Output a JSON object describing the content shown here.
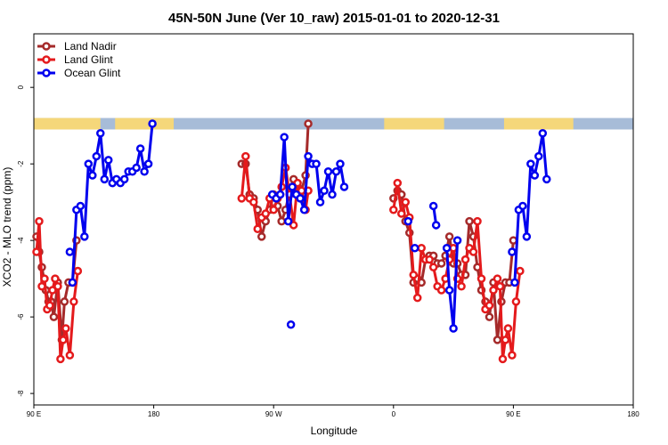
{
  "chart_data": {
    "type": "line",
    "title": "45N-50N June (Ver 10_raw)   2015-01-01 to 2020-12-31",
    "xlabel": "Longitude",
    "ylabel": "XCO2 - MLO trend (ppm)",
    "xlim": [
      90,
      540
    ],
    "ylim": [
      -8.3,
      1.4
    ],
    "x_ticks": [
      {
        "value": 90,
        "label": "90 E"
      },
      {
        "value": 180,
        "label": "180"
      },
      {
        "value": 270,
        "label": "90 W"
      },
      {
        "value": 360,
        "label": "0"
      },
      {
        "value": 450,
        "label": "90 E"
      },
      {
        "value": 540,
        "label": "180"
      }
    ],
    "y_ticks": [
      0,
      -2,
      -4,
      -6,
      -8
    ],
    "grid": false,
    "legend_position": "top-left",
    "land_ocean_strip": {
      "y_range": [
        -1.1,
        -0.8
      ],
      "land_color": "#f5d77a",
      "ocean_color": "#a7bcd8",
      "land_segments": [
        [
          90,
          140
        ],
        [
          151,
          195
        ],
        [
          353,
          398
        ],
        [
          443,
          495
        ]
      ]
    },
    "series": [
      {
        "name": "Land Nadir",
        "color": "#a52a2a",
        "points": [
          [
            92,
            -3.9
          ],
          [
            94,
            -4.3
          ],
          [
            96,
            -4.7
          ],
          [
            99,
            -5.3
          ],
          [
            101,
            -5.6
          ],
          [
            103,
            -5.6
          ],
          [
            105,
            -6.0
          ],
          [
            108,
            -5.1
          ],
          [
            111,
            -6.6
          ],
          [
            113,
            -5.6
          ],
          [
            116,
            -5.1
          ],
          [
            119,
            -5.1
          ],
          [
            122,
            -4.0
          ],
          null,
          [
            246,
            -2.0
          ],
          [
            249,
            -2.0
          ],
          [
            252,
            -2.8
          ],
          [
            255,
            -2.9
          ],
          [
            258,
            -3.2
          ],
          [
            261,
            -3.9
          ],
          [
            264,
            -3.5
          ],
          [
            267,
            -3.2
          ],
          [
            270,
            -2.8
          ],
          [
            273,
            -3.1
          ],
          [
            276,
            -3.5
          ],
          [
            279,
            -3.2
          ],
          [
            282,
            -2.7
          ],
          [
            285,
            -2.4
          ],
          [
            288,
            -2.6
          ],
          [
            291,
            -2.7
          ],
          [
            294,
            -2.3
          ],
          [
            296,
            -0.95
          ],
          null,
          [
            360,
            -2.9
          ],
          [
            363,
            -2.7
          ],
          [
            366,
            -2.8
          ],
          [
            369,
            -3.5
          ],
          [
            372,
            -3.8
          ],
          [
            375,
            -5.1
          ],
          [
            378,
            -5.0
          ],
          [
            381,
            -5.1
          ],
          [
            384,
            -4.5
          ],
          [
            387,
            -4.4
          ],
          [
            390,
            -4.4
          ],
          [
            393,
            -4.6
          ],
          [
            396,
            -4.6
          ],
          [
            399,
            -4.4
          ],
          [
            402,
            -3.9
          ],
          [
            405,
            -4.6
          ],
          [
            408,
            -4.6
          ],
          [
            411,
            -4.9
          ],
          [
            414,
            -4.9
          ],
          [
            417,
            -3.5
          ],
          [
            420,
            -3.9
          ],
          [
            423,
            -4.7
          ],
          [
            426,
            -5.3
          ],
          [
            429,
            -5.6
          ],
          [
            432,
            -6.0
          ],
          [
            435,
            -5.1
          ],
          [
            438,
            -6.6
          ],
          [
            441,
            -5.6
          ],
          [
            444,
            -5.1
          ],
          [
            447,
            -5.1
          ],
          [
            450,
            -4.0
          ]
        ]
      },
      {
        "name": "Land Glint",
        "color": "#e41a1c",
        "points": [
          [
            92,
            -4.3
          ],
          [
            94,
            -3.5
          ],
          [
            96,
            -5.2
          ],
          [
            98,
            -5.0
          ],
          [
            100,
            -5.8
          ],
          [
            102,
            -5.7
          ],
          [
            104,
            -5.3
          ],
          [
            106,
            -5.0
          ],
          [
            108,
            -5.2
          ],
          [
            110,
            -7.1
          ],
          [
            112,
            -6.6
          ],
          [
            114,
            -6.3
          ],
          [
            117,
            -7.0
          ],
          [
            120,
            -5.6
          ],
          [
            123,
            -4.8
          ],
          null,
          [
            246,
            -2.9
          ],
          [
            249,
            -1.8
          ],
          [
            252,
            -2.9
          ],
          [
            255,
            -3.0
          ],
          [
            258,
            -3.7
          ],
          [
            261,
            -3.4
          ],
          [
            264,
            -3.3
          ],
          [
            267,
            -2.9
          ],
          [
            270,
            -3.2
          ],
          [
            273,
            -2.9
          ],
          [
            276,
            -2.6
          ],
          [
            279,
            -2.1
          ],
          [
            282,
            -2.8
          ],
          [
            285,
            -3.6
          ],
          [
            288,
            -2.5
          ],
          [
            291,
            -2.7
          ],
          [
            294,
            -3.2
          ],
          [
            296,
            -2.7
          ],
          null,
          [
            360,
            -3.2
          ],
          [
            363,
            -2.5
          ],
          [
            366,
            -3.3
          ],
          [
            369,
            -3.0
          ],
          [
            372,
            -3.4
          ],
          [
            375,
            -4.9
          ],
          [
            378,
            -5.5
          ],
          [
            381,
            -4.2
          ],
          [
            384,
            -4.5
          ],
          [
            387,
            -4.5
          ],
          [
            390,
            -4.7
          ],
          [
            393,
            -5.2
          ],
          [
            396,
            -5.3
          ],
          [
            399,
            -5.0
          ],
          [
            402,
            -4.5
          ],
          [
            405,
            -4.2
          ],
          [
            408,
            -5.0
          ],
          [
            411,
            -5.2
          ],
          [
            414,
            -4.5
          ],
          [
            417,
            -4.2
          ],
          [
            420,
            -4.3
          ],
          [
            423,
            -3.5
          ],
          [
            426,
            -5.0
          ],
          [
            429,
            -5.8
          ],
          [
            432,
            -5.7
          ],
          [
            435,
            -5.3
          ],
          [
            438,
            -5.0
          ],
          [
            440,
            -5.2
          ],
          [
            442,
            -7.1
          ],
          [
            444,
            -6.6
          ],
          [
            446,
            -6.3
          ],
          [
            449,
            -7.0
          ],
          [
            452,
            -5.6
          ],
          [
            455,
            -4.8
          ]
        ]
      },
      {
        "name": "Ocean Glint",
        "color": "#0000ee",
        "points": [
          [
            119,
            -5.1
          ],
          [
            122,
            -3.2
          ],
          [
            125,
            -3.1
          ],
          [
            128,
            -3.9
          ],
          [
            131,
            -2.0
          ],
          [
            134,
            -2.3
          ],
          [
            137,
            -1.8
          ],
          [
            140,
            -1.2
          ],
          [
            143,
            -2.4
          ],
          [
            146,
            -1.9
          ],
          [
            149,
            -2.5
          ],
          [
            152,
            -2.4
          ],
          [
            155,
            -2.5
          ],
          [
            158,
            -2.4
          ],
          [
            161,
            -2.2
          ],
          [
            164,
            -2.2
          ],
          [
            167,
            -2.1
          ],
          [
            170,
            -1.6
          ],
          [
            173,
            -2.2
          ],
          [
            176,
            -2.0
          ],
          [
            179,
            -0.95
          ],
          null,
          [
            269,
            -2.8
          ],
          [
            272,
            -2.9
          ],
          [
            275,
            -2.8
          ],
          [
            278,
            -1.3
          ],
          [
            281,
            -3.5
          ],
          [
            284,
            -2.6
          ],
          [
            287,
            -2.8
          ],
          [
            290,
            -2.9
          ],
          [
            293,
            -3.2
          ],
          [
            296,
            -1.8
          ],
          [
            299,
            -2.0
          ],
          [
            302,
            -2.0
          ],
          [
            305,
            -3.0
          ],
          [
            308,
            -2.7
          ],
          [
            311,
            -2.2
          ],
          [
            314,
            -2.8
          ],
          [
            317,
            -2.2
          ],
          [
            320,
            -2.0
          ],
          [
            323,
            -2.6
          ],
          null,
          [
            390,
            -3.1
          ],
          [
            392,
            -3.6
          ],
          null,
          [
            400,
            -4.2
          ],
          [
            402,
            -5.3
          ],
          [
            405,
            -6.3
          ],
          [
            408,
            -4.0
          ],
          null,
          [
            451,
            -5.1
          ],
          [
            454,
            -3.2
          ],
          [
            457,
            -3.1
          ],
          [
            460,
            -3.9
          ],
          [
            463,
            -2.0
          ],
          [
            466,
            -2.3
          ],
          [
            469,
            -1.8
          ],
          [
            472,
            -1.2
          ],
          [
            475,
            -2.4
          ]
        ],
        "isolated_points": [
          [
            117,
            -4.3
          ],
          [
            283,
            -6.2
          ],
          [
            371,
            -3.5
          ],
          [
            376,
            -4.2
          ],
          [
            449,
            -4.3
          ]
        ]
      }
    ]
  }
}
